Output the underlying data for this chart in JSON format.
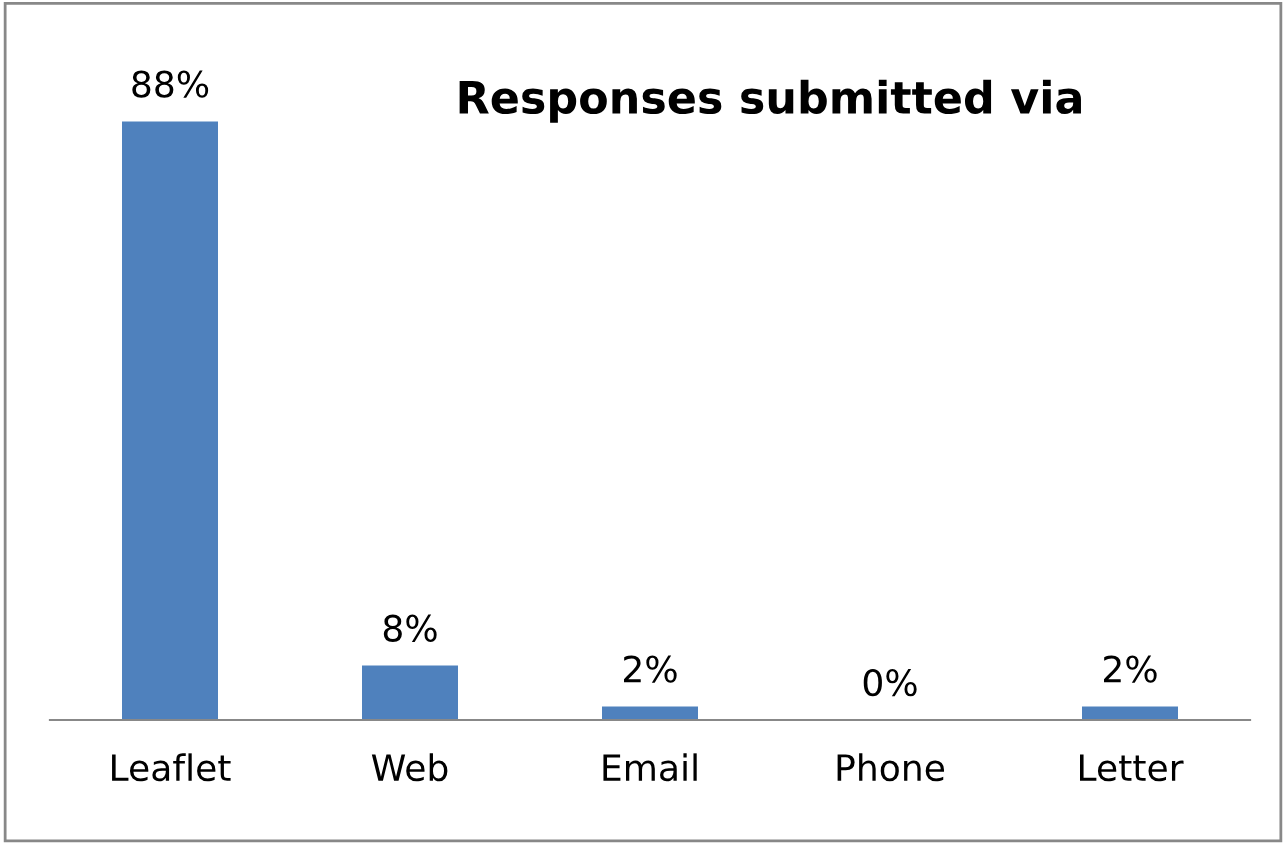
{
  "chart_data": {
    "type": "bar",
    "title": "Responses submitted via",
    "categories": [
      "Leaflet",
      "Web",
      "Email",
      "Phone",
      "Letter"
    ],
    "values": [
      88,
      8,
      2,
      0,
      2
    ],
    "value_labels": [
      "88%",
      "8%",
      "2%",
      "0%",
      "2%"
    ],
    "color": "#4f81bd",
    "grid": false,
    "legend": false
  }
}
